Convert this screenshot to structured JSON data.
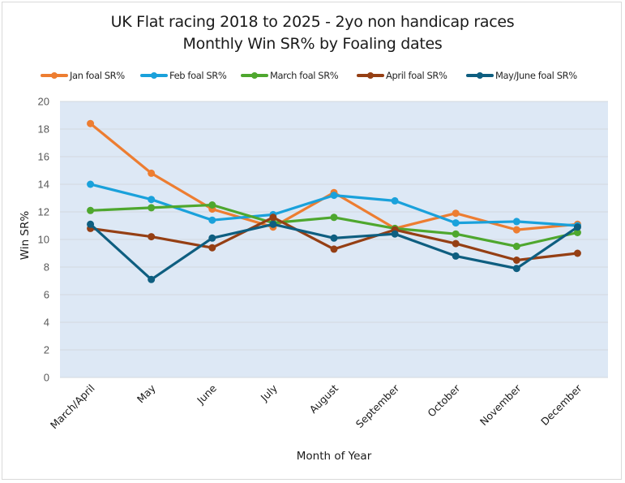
{
  "chart_data": {
    "type": "line",
    "title": "UK Flat racing 2018 to 2025 - 2yo non handicap races",
    "subtitle": "Monthly Win SR% by Foaling dates",
    "xlabel": "Month of Year",
    "ylabel": "Win SR%",
    "ylim": [
      0,
      20
    ],
    "yticks": [
      "0",
      "2",
      "4",
      "6",
      "8",
      "10",
      "12",
      "14",
      "16",
      "18",
      "20"
    ],
    "grid": true,
    "legend_position": "top",
    "categories": [
      "March/April",
      "May",
      "June",
      "July",
      "August",
      "September",
      "October",
      "November",
      "December"
    ],
    "series": [
      {
        "name": "Jan foal SR%",
        "color": "#ED7D31",
        "values": [
          18.4,
          14.8,
          12.2,
          10.9,
          13.4,
          10.8,
          11.9,
          10.7,
          11.1
        ]
      },
      {
        "name": "Feb foal SR%",
        "color": "#1AA1DB",
        "values": [
          14.0,
          12.9,
          11.4,
          11.8,
          13.2,
          12.8,
          11.2,
          11.3,
          11.0
        ]
      },
      {
        "name": "March foal SR%",
        "color": "#4EA72E",
        "values": [
          12.1,
          12.3,
          12.5,
          11.2,
          11.6,
          10.8,
          10.4,
          9.5,
          10.5
        ]
      },
      {
        "name": "April foal SR%",
        "color": "#953F14",
        "values": [
          10.8,
          10.2,
          9.4,
          11.6,
          9.3,
          10.7,
          9.7,
          8.5,
          9.0
        ]
      },
      {
        "name": "May/June foal SR%",
        "color": "#0E5E80",
        "values": [
          11.1,
          7.1,
          10.1,
          11.1,
          10.1,
          10.4,
          8.8,
          7.9,
          10.9
        ]
      }
    ],
    "plot_background": "#DDE8F5",
    "gridline_color": "#D3D8DE"
  }
}
